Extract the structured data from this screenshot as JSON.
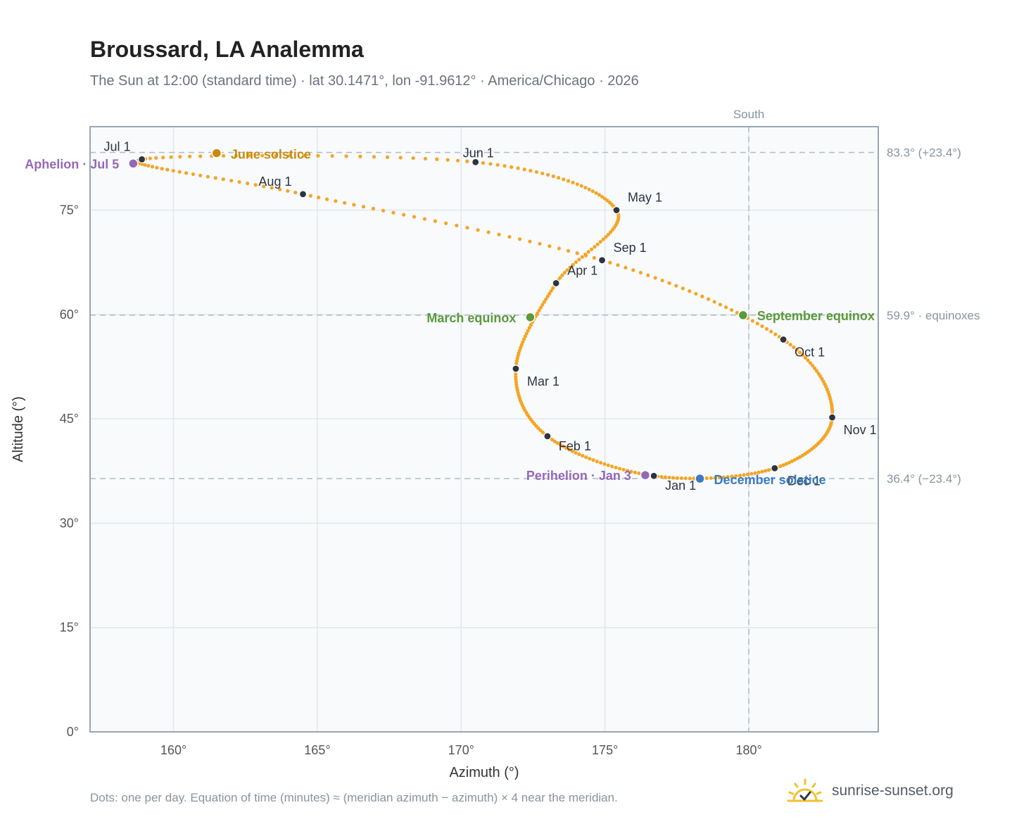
{
  "header": {
    "title": "Broussard, LA Analemma",
    "subtitle": "The Sun at 12:00 (standard time) · lat 30.1471°, lon -91.9612° · America/Chicago · 2026"
  },
  "footer": {
    "note": "Dots: one per day. Equation of time (minutes) ≈ (meridian azimuth − azimuth) × 4 near the meridian.",
    "brand": "sunrise-sunset.org"
  },
  "colors": {
    "path": "#f5a524",
    "month_marker": "#2d3340",
    "solstice_june": "#c98a0c",
    "solstice_december": "#3b7bc4",
    "equinox": "#5a9a3a",
    "apsis": "#9468b8",
    "plot_bg": "#f8fafc",
    "grid": "#e1e7ee",
    "frame": "#9aa6b4",
    "reference_line": "#b2bcc6",
    "brand_sun": "#f2c12e"
  },
  "chart_data": {
    "type": "scatter",
    "xlabel": "Azimuth (°)",
    "ylabel": "Altitude (°)",
    "xlim": [
      157.1,
      184.5
    ],
    "ylim": [
      0,
      87
    ],
    "x_ticks": [
      160,
      165,
      170,
      175,
      180
    ],
    "x_tick_labels": [
      "160°",
      "165°",
      "170°",
      "175°",
      "180°"
    ],
    "y_ticks": [
      0,
      15,
      30,
      45,
      60,
      75
    ],
    "y_tick_labels": [
      "0°",
      "15°",
      "30°",
      "45°",
      "60°",
      "75°"
    ],
    "grid": true,
    "meridian": {
      "azimuth": 180,
      "label": "South"
    },
    "reference_lines": [
      {
        "altitude": 83.3,
        "label": "83.3° (+23.4°)"
      },
      {
        "altitude": 59.9,
        "label": "59.9° · equinoxes"
      },
      {
        "altitude": 36.4,
        "label": "36.4° (−23.4°)"
      }
    ],
    "month_points": [
      {
        "label": "Jan 1",
        "az": 176.7,
        "alt": 36.8
      },
      {
        "label": "Feb 1",
        "az": 173.0,
        "alt": 42.5
      },
      {
        "label": "Mar 1",
        "az": 171.9,
        "alt": 52.2
      },
      {
        "label": "Apr 1",
        "az": 173.3,
        "alt": 64.5
      },
      {
        "label": "May 1",
        "az": 175.4,
        "alt": 75.0
      },
      {
        "label": "Jun 1",
        "az": 170.5,
        "alt": 81.9
      },
      {
        "label": "Jul 1",
        "az": 158.9,
        "alt": 82.3
      },
      {
        "label": "Aug 1",
        "az": 164.5,
        "alt": 77.3
      },
      {
        "label": "Sep 1",
        "az": 174.9,
        "alt": 67.8
      },
      {
        "label": "Oct 1",
        "az": 181.2,
        "alt": 56.4
      },
      {
        "label": "Nov 1",
        "az": 182.9,
        "alt": 45.2
      },
      {
        "label": "Dec 1",
        "az": 180.9,
        "alt": 37.9
      }
    ],
    "events": [
      {
        "label": "June solstice",
        "kind": "solstice_june",
        "az": 161.5,
        "alt": 83.2
      },
      {
        "label": "December solstice",
        "kind": "solstice_december",
        "az": 178.3,
        "alt": 36.4
      },
      {
        "label": "March equinox",
        "kind": "equinox",
        "az": 172.4,
        "alt": 59.6
      },
      {
        "label": "September equinox",
        "kind": "equinox",
        "az": 179.8,
        "alt": 59.9
      },
      {
        "label": "Aphelion · Jul 5",
        "kind": "apsis",
        "az": 158.6,
        "alt": 81.7
      },
      {
        "label": "Perihelion · Jan 3",
        "kind": "apsis",
        "az": 176.4,
        "alt": 36.9
      }
    ]
  }
}
